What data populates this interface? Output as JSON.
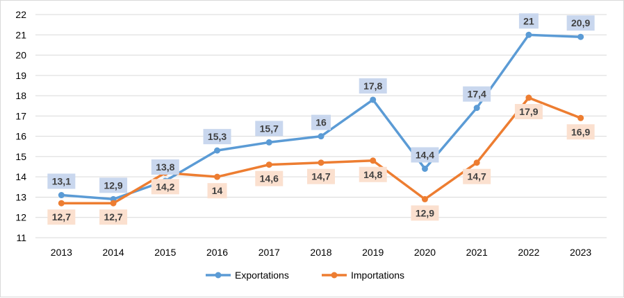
{
  "chart_data": {
    "type": "line",
    "title": "",
    "xlabel": "",
    "ylabel": "",
    "categories": [
      "2013",
      "2014",
      "2015",
      "2016",
      "2017",
      "2018",
      "2019",
      "2020",
      "2021",
      "2022",
      "2023"
    ],
    "ylim": [
      11,
      22
    ],
    "yticks": [
      11,
      12,
      13,
      14,
      15,
      16,
      17,
      18,
      19,
      20,
      21,
      22
    ],
    "grid": true,
    "legend_position": "bottom",
    "series": [
      {
        "name": "Exportations",
        "color": "#5b9bd5",
        "label_bg": "#c9d7ee",
        "label_pos": "above",
        "values": [
          13.1,
          12.9,
          13.8,
          15.3,
          15.7,
          16,
          17.8,
          14.4,
          17.4,
          21,
          20.9
        ],
        "labels": [
          "13,1",
          "12,9",
          "13,8",
          "15,3",
          "15,7",
          "16",
          "17,8",
          "14,4",
          "17,4",
          "21",
          "20,9"
        ]
      },
      {
        "name": "Importations",
        "color": "#ed7d31",
        "label_bg": "#fbe0cf",
        "label_pos": "below",
        "values": [
          12.7,
          12.7,
          14.2,
          14,
          14.6,
          14.7,
          14.8,
          12.9,
          14.7,
          17.9,
          16.9
        ],
        "labels": [
          "12,7",
          "12,7",
          "14,2",
          "14",
          "14,6",
          "14,7",
          "14,8",
          "12,9",
          "14,7",
          "17,9",
          "16,9"
        ]
      }
    ]
  }
}
